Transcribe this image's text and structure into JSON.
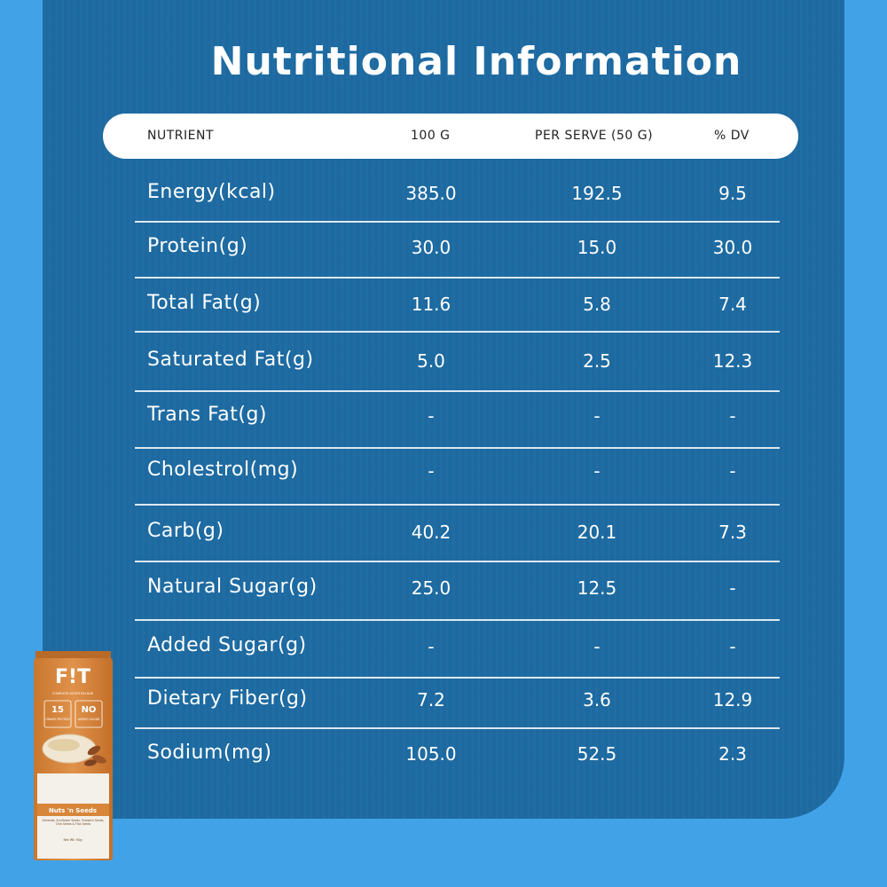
{
  "title": "Nutritional Information",
  "header": {
    "nutrient": "NUTRIENT",
    "col_100g": "100 G",
    "col_serve": "PER SERVE (50 G)",
    "col_dv": "% DV"
  },
  "rows": [
    {
      "name": "Energy(kcal)",
      "g100": "385.0",
      "serve": "192.5",
      "dv": "9.5"
    },
    {
      "name": "Protein(g)",
      "g100": "30.0",
      "serve": "15.0",
      "dv": "30.0"
    },
    {
      "name": "Total Fat(g)",
      "g100": "11.6",
      "serve": "5.8",
      "dv": "7.4"
    },
    {
      "name": "Saturated Fat(g)",
      "g100": "5.0",
      "serve": "2.5",
      "dv": "12.3"
    },
    {
      "name": "Trans Fat(g)",
      "g100": "-",
      "serve": "-",
      "dv": "-"
    },
    {
      "name": "Cholestrol(mg)",
      "g100": "-",
      "serve": "-",
      "dv": "-"
    },
    {
      "name": "Carb(g)",
      "g100": "40.2",
      "serve": "20.1",
      "dv": "7.3"
    },
    {
      "name": "Natural Sugar(g)",
      "g100": "25.0",
      "serve": "12.5",
      "dv": "-"
    },
    {
      "name": "Added Sugar(g)",
      "g100": "-",
      "serve": "-",
      "dv": "-"
    },
    {
      "name": "Dietary Fiber(g)",
      "g100": "7.2",
      "serve": "3.6",
      "dv": "12.9"
    },
    {
      "name": "Sodium(mg)",
      "g100": "105.0",
      "serve": "52.5",
      "dv": "2.3"
    }
  ],
  "product": {
    "brand": "F!T",
    "tagline": "COMPLETE NUTRITION BAR",
    "badge_protein_num": "15",
    "badge_protein_text": "GRAMS PROTEIN",
    "badge_sugar_num": "NO",
    "badge_sugar_text": "ADDED SUGAR",
    "flavor": "Nuts 'n Seeds",
    "ingredients": "Almonds, Sunflower Seeds, Pumpkin Seeds, Chia Seeds & Flax Seeds",
    "net_wt": "Net Wt: 50g"
  },
  "colors": {
    "page_bg": "#41a2e8",
    "panel_bg": "#1d6ba3",
    "product_orange": "#d8863a"
  }
}
